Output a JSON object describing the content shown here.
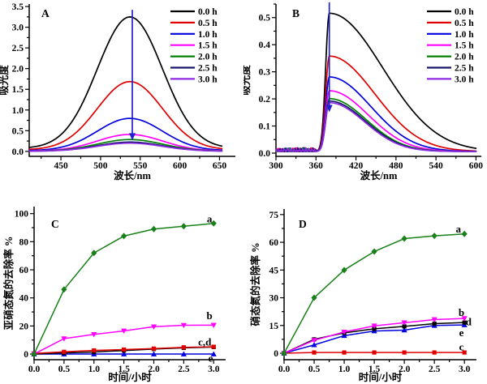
{
  "figure_background": "#ffffff",
  "arrow_color": "#2222cc",
  "chart_data": [
    {
      "id": "A",
      "type": "line",
      "panel_label": "A",
      "xlabel": "波长/nm",
      "ylabel": "吸光度",
      "x_axis": {
        "min": 410,
        "max": 670,
        "ticks": [
          450,
          500,
          550,
          600,
          650
        ],
        "decimals": 0
      },
      "y_axis": {
        "min": -0.12,
        "max": 3.56,
        "ticks": [
          0,
          0.5,
          1.0,
          1.5,
          2.0,
          2.5,
          3.0,
          3.5
        ],
        "decimals": 1
      },
      "legend_position": "top-right",
      "curve_model": {
        "kind": "gaussian",
        "center": 537,
        "sigma": 41,
        "baseline_frac": 0.022,
        "x_start": 410,
        "x_end": 655,
        "step": 3
      },
      "series": [
        {
          "name": "0.0 h",
          "color": "#000000",
          "peak": 3.18
        },
        {
          "name": "0.5 h",
          "color": "#e10000",
          "peak": 1.65
        },
        {
          "name": "1.0 h",
          "color": "#0000dd",
          "peak": 0.78
        },
        {
          "name": "1.5 h",
          "color": "#ff00ff",
          "peak": 0.4
        },
        {
          "name": "2.0 h",
          "color": "#008000",
          "peak": 0.28
        },
        {
          "name": "2.5 h",
          "color": "#16166b",
          "peak": 0.22
        },
        {
          "name": "3.0 h",
          "color": "#8b2be2",
          "peak": 0.195
        }
      ],
      "arrow": {
        "x": 540,
        "y_from": 3.42,
        "y_to": 0.42
      }
    },
    {
      "id": "B",
      "type": "line",
      "panel_label": "B",
      "xlabel": "波长/nm",
      "ylabel": "吸光度",
      "x_axis": {
        "min": 300,
        "max": 608,
        "ticks": [
          300,
          360,
          420,
          480,
          540,
          600
        ],
        "decimals": 0
      },
      "y_axis": {
        "min": -0.012,
        "max": 0.55,
        "ticks": [
          0,
          0.1,
          0.2,
          0.3,
          0.4,
          0.5
        ],
        "decimals": 1
      },
      "legend_position": "top-right",
      "curve_model": {
        "kind": "sharp_peak",
        "center": 380,
        "rise_sigma": 5.5,
        "fall_sigma": 80,
        "baseline": 0.006,
        "noise_level": 0.012,
        "x_start": 300,
        "x_end": 600,
        "step": 1.5
      },
      "series": [
        {
          "name": "0.0 h",
          "color": "#000000",
          "peak": 0.51,
          "fall_sigma": 80
        },
        {
          "name": "0.5 h",
          "color": "#e10000",
          "peak": 0.352,
          "fall_sigma": 68
        },
        {
          "name": "1.0 h",
          "color": "#0000dd",
          "peak": 0.275,
          "fall_sigma": 62
        },
        {
          "name": "1.5 h",
          "color": "#ff00ff",
          "peak": 0.224,
          "fall_sigma": 58
        },
        {
          "name": "2.0 h",
          "color": "#008000",
          "peak": 0.195,
          "fall_sigma": 55
        },
        {
          "name": "2.5 h",
          "color": "#16166b",
          "peak": 0.186,
          "fall_sigma": 54
        },
        {
          "name": "3.0 h",
          "color": "#8b2be2",
          "peak": 0.18,
          "fall_sigma": 53
        }
      ],
      "arrow": {
        "x": 380,
        "y_from": 0.556,
        "y_to": 0.175
      }
    },
    {
      "id": "C",
      "type": "line",
      "panel_label": "C",
      "xlabel": "时间/小时",
      "ylabel": "亚硝态氮的去除率 %",
      "x_axis": {
        "min": 0,
        "max": 3.2,
        "ticks": [
          0.0,
          0.5,
          1.0,
          1.5,
          2.0,
          2.5,
          3.0
        ],
        "decimals": 1
      },
      "y_axis": {
        "min": -4,
        "max": 105,
        "ticks": [
          0,
          20,
          40,
          60,
          80,
          100
        ],
        "decimals": 0
      },
      "x": [
        0,
        0.5,
        1.0,
        1.5,
        2.0,
        2.5,
        3.0
      ],
      "series": [
        {
          "name": "e",
          "color": "#0000e0",
          "marker": "triangle-up",
          "y": [
            0,
            0,
            0,
            0,
            0,
            0,
            0
          ]
        },
        {
          "name": "d",
          "color": "#000000",
          "marker": "square",
          "y": [
            0,
            0.8,
            1.5,
            2.5,
            3.6,
            4.4,
            5.0
          ]
        },
        {
          "name": "c",
          "color": "#e10000",
          "marker": "square",
          "y": [
            0.5,
            1.6,
            2.6,
            3.2,
            3.9,
            4.8,
            5.2
          ]
        },
        {
          "name": "b",
          "color": "#ff00ff",
          "marker": "triangle-down",
          "y": [
            0,
            11,
            14,
            16.5,
            19.5,
            20.5,
            20.6
          ]
        },
        {
          "name": "a",
          "color": "#188018",
          "marker": "diamond",
          "y": [
            0,
            46,
            72,
            84,
            89,
            91,
            93
          ]
        }
      ],
      "annotations": [
        {
          "text": "a",
          "x": 2.93,
          "y": 96
        },
        {
          "text": "b",
          "x": 2.93,
          "y": 27
        },
        {
          "text": "c,d",
          "x": 2.85,
          "y": 8.5
        },
        {
          "text": "e",
          "x": 2.95,
          "y": -3.2
        }
      ]
    },
    {
      "id": "D",
      "type": "line",
      "panel_label": "D",
      "xlabel": "时间/小时",
      "ylabel": "硝态氮的去除率 %",
      "x_axis": {
        "min": 0,
        "max": 3.2,
        "ticks": [
          0.0,
          0.5,
          1.0,
          1.5,
          2.0,
          2.5,
          3.0
        ],
        "decimals": 1
      },
      "y_axis": {
        "min": -3.5,
        "max": 78,
        "ticks": [
          0,
          15,
          30,
          45,
          60,
          75
        ],
        "decimals": 0
      },
      "x": [
        0,
        0.5,
        1.0,
        1.5,
        2.0,
        2.5,
        3.0
      ],
      "series": [
        {
          "name": "c",
          "color": "#e10000",
          "marker": "square",
          "y": [
            0,
            0.4,
            0.4,
            0.4,
            0.4,
            0.4,
            0.4
          ]
        },
        {
          "name": "e",
          "color": "#0000e0",
          "marker": "triangle-up",
          "y": [
            0,
            4.5,
            9.5,
            12,
            12.5,
            15,
            15.3
          ]
        },
        {
          "name": "d",
          "color": "#000000",
          "marker": "square",
          "y": [
            0,
            7.5,
            11,
            13.2,
            14.5,
            16,
            16.6
          ]
        },
        {
          "name": "b",
          "color": "#ff00ff",
          "marker": "triangle-down",
          "y": [
            0,
            7,
            11.5,
            14.8,
            16.5,
            18.2,
            18.8
          ]
        },
        {
          "name": "a",
          "color": "#188018",
          "marker": "diamond",
          "y": [
            0,
            30,
            45,
            55,
            62,
            63.5,
            64.5
          ]
        }
      ],
      "annotations": [
        {
          "text": "a",
          "x": 2.9,
          "y": 67
        },
        {
          "text": "b",
          "x": 2.95,
          "y": 22
        },
        {
          "text": "d",
          "x": 3.07,
          "y": 16.8
        },
        {
          "text": "e",
          "x": 2.95,
          "y": 11
        },
        {
          "text": "c",
          "x": 2.95,
          "y": 3.2
        }
      ]
    }
  ]
}
